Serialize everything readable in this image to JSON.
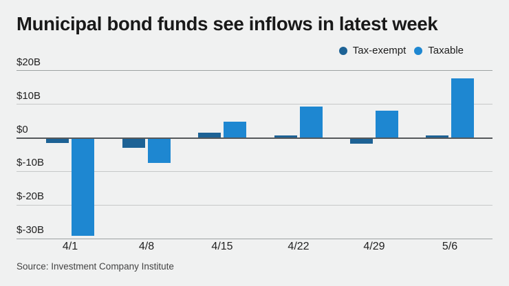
{
  "header": {
    "title": "Municipal bond funds see inflows in latest week"
  },
  "footer": {
    "source": "Source: Investment Company Institute"
  },
  "colors": {
    "background": "#f0f1f1",
    "title_text": "#191919",
    "axis_text": "#222222",
    "source_text": "#424242",
    "tax_exempt": "#1d6295",
    "taxable": "#1e87d1",
    "grid_inner": "#c6c8c8",
    "grid_outer": "#9da1a2",
    "zero_line": "#54575a"
  },
  "chart_data": {
    "type": "bar",
    "title": "Municipal bond funds see inflows in latest week",
    "unit": "billions USD (weekly fund flows)",
    "categories": [
      "4/1",
      "4/8",
      "4/15",
      "4/22",
      "4/29",
      "5/6"
    ],
    "series": [
      {
        "name": "Tax-exempt",
        "color": "#1d6295",
        "values": [
          -1.5,
          -2.9,
          1.6,
          0.7,
          -1.7,
          0.7
        ]
      },
      {
        "name": "Taxable",
        "color": "#1e87d1",
        "values": [
          -29.1,
          -7.5,
          4.8,
          9.4,
          8.1,
          17.8
        ]
      }
    ],
    "y_ticks": [
      "$20B",
      "$10B",
      "$0",
      "$-10B",
      "$-20B",
      "$-30B"
    ],
    "y_tick_values": [
      20,
      10,
      0,
      -10,
      -20,
      -30
    ],
    "ylim": [
      -30,
      20
    ],
    "grid": "horizontal",
    "legend_position": "top-right",
    "source": "Source: Investment Company Institute"
  }
}
